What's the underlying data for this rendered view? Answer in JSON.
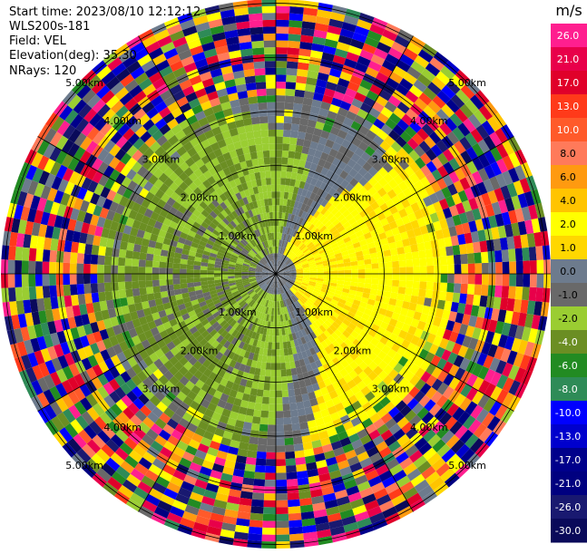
{
  "header": {
    "start_time": "Start time: 2023/08/10 12:12:12",
    "instrument": "WLS200s-181",
    "field": "Field: VEL",
    "elevation": "Elevation(deg): 35.30",
    "nrays": "NRays: 120"
  },
  "chart_data": {
    "type": "heatmap",
    "subtype": "polar-ppi",
    "field": "VEL",
    "unit": "m/s",
    "nrays": 120,
    "range_max_km": 5.0,
    "range_rings": [
      {
        "km": 1.0,
        "label": "1.00km"
      },
      {
        "km": 2.0,
        "label": "2.00km"
      },
      {
        "km": 3.0,
        "label": "3.00km"
      },
      {
        "km": 4.0,
        "label": "4.00km"
      },
      {
        "km": 5.0,
        "label": "5.00km"
      }
    ],
    "spokes_deg": [
      0,
      30,
      60,
      90,
      120,
      150,
      180,
      210,
      240,
      270,
      300,
      330
    ],
    "colorbar": {
      "unit": "m/s",
      "bins": [
        {
          "label": "26.0",
          "color": "#ff1f8f"
        },
        {
          "label": "21.0",
          "color": "#e8004a"
        },
        {
          "label": "17.0",
          "color": "#e0002a"
        },
        {
          "label": "13.0",
          "color": "#ff3a1a"
        },
        {
          "label": "10.0",
          "color": "#ff5a2a"
        },
        {
          "label": "8.0",
          "color": "#ff7a5a"
        },
        {
          "label": "6.0",
          "color": "#ff9a10"
        },
        {
          "label": "4.0",
          "color": "#ffc400"
        },
        {
          "label": "2.0",
          "color": "#ffff00"
        },
        {
          "label": "1.0",
          "color": "#ffd700"
        },
        {
          "label": "0.0",
          "color": "#6d7b8d"
        },
        {
          "label": "-1.0",
          "color": "#696969"
        },
        {
          "label": "-2.0",
          "color": "#9acd32"
        },
        {
          "label": "-4.0",
          "color": "#6b8e23"
        },
        {
          "label": "-6.0",
          "color": "#228b22"
        },
        {
          "label": "-8.0",
          "color": "#2e8b57"
        },
        {
          "label": "-10.0",
          "color": "#0000ff"
        },
        {
          "label": "-13.0",
          "color": "#0000cd"
        },
        {
          "label": "-17.0",
          "color": "#00008b"
        },
        {
          "label": "-21.0",
          "color": "#000080"
        },
        {
          "label": "-26.0",
          "color": "#191970"
        },
        {
          "label": "-30.0",
          "color": "#0a0a5a"
        }
      ]
    }
  }
}
